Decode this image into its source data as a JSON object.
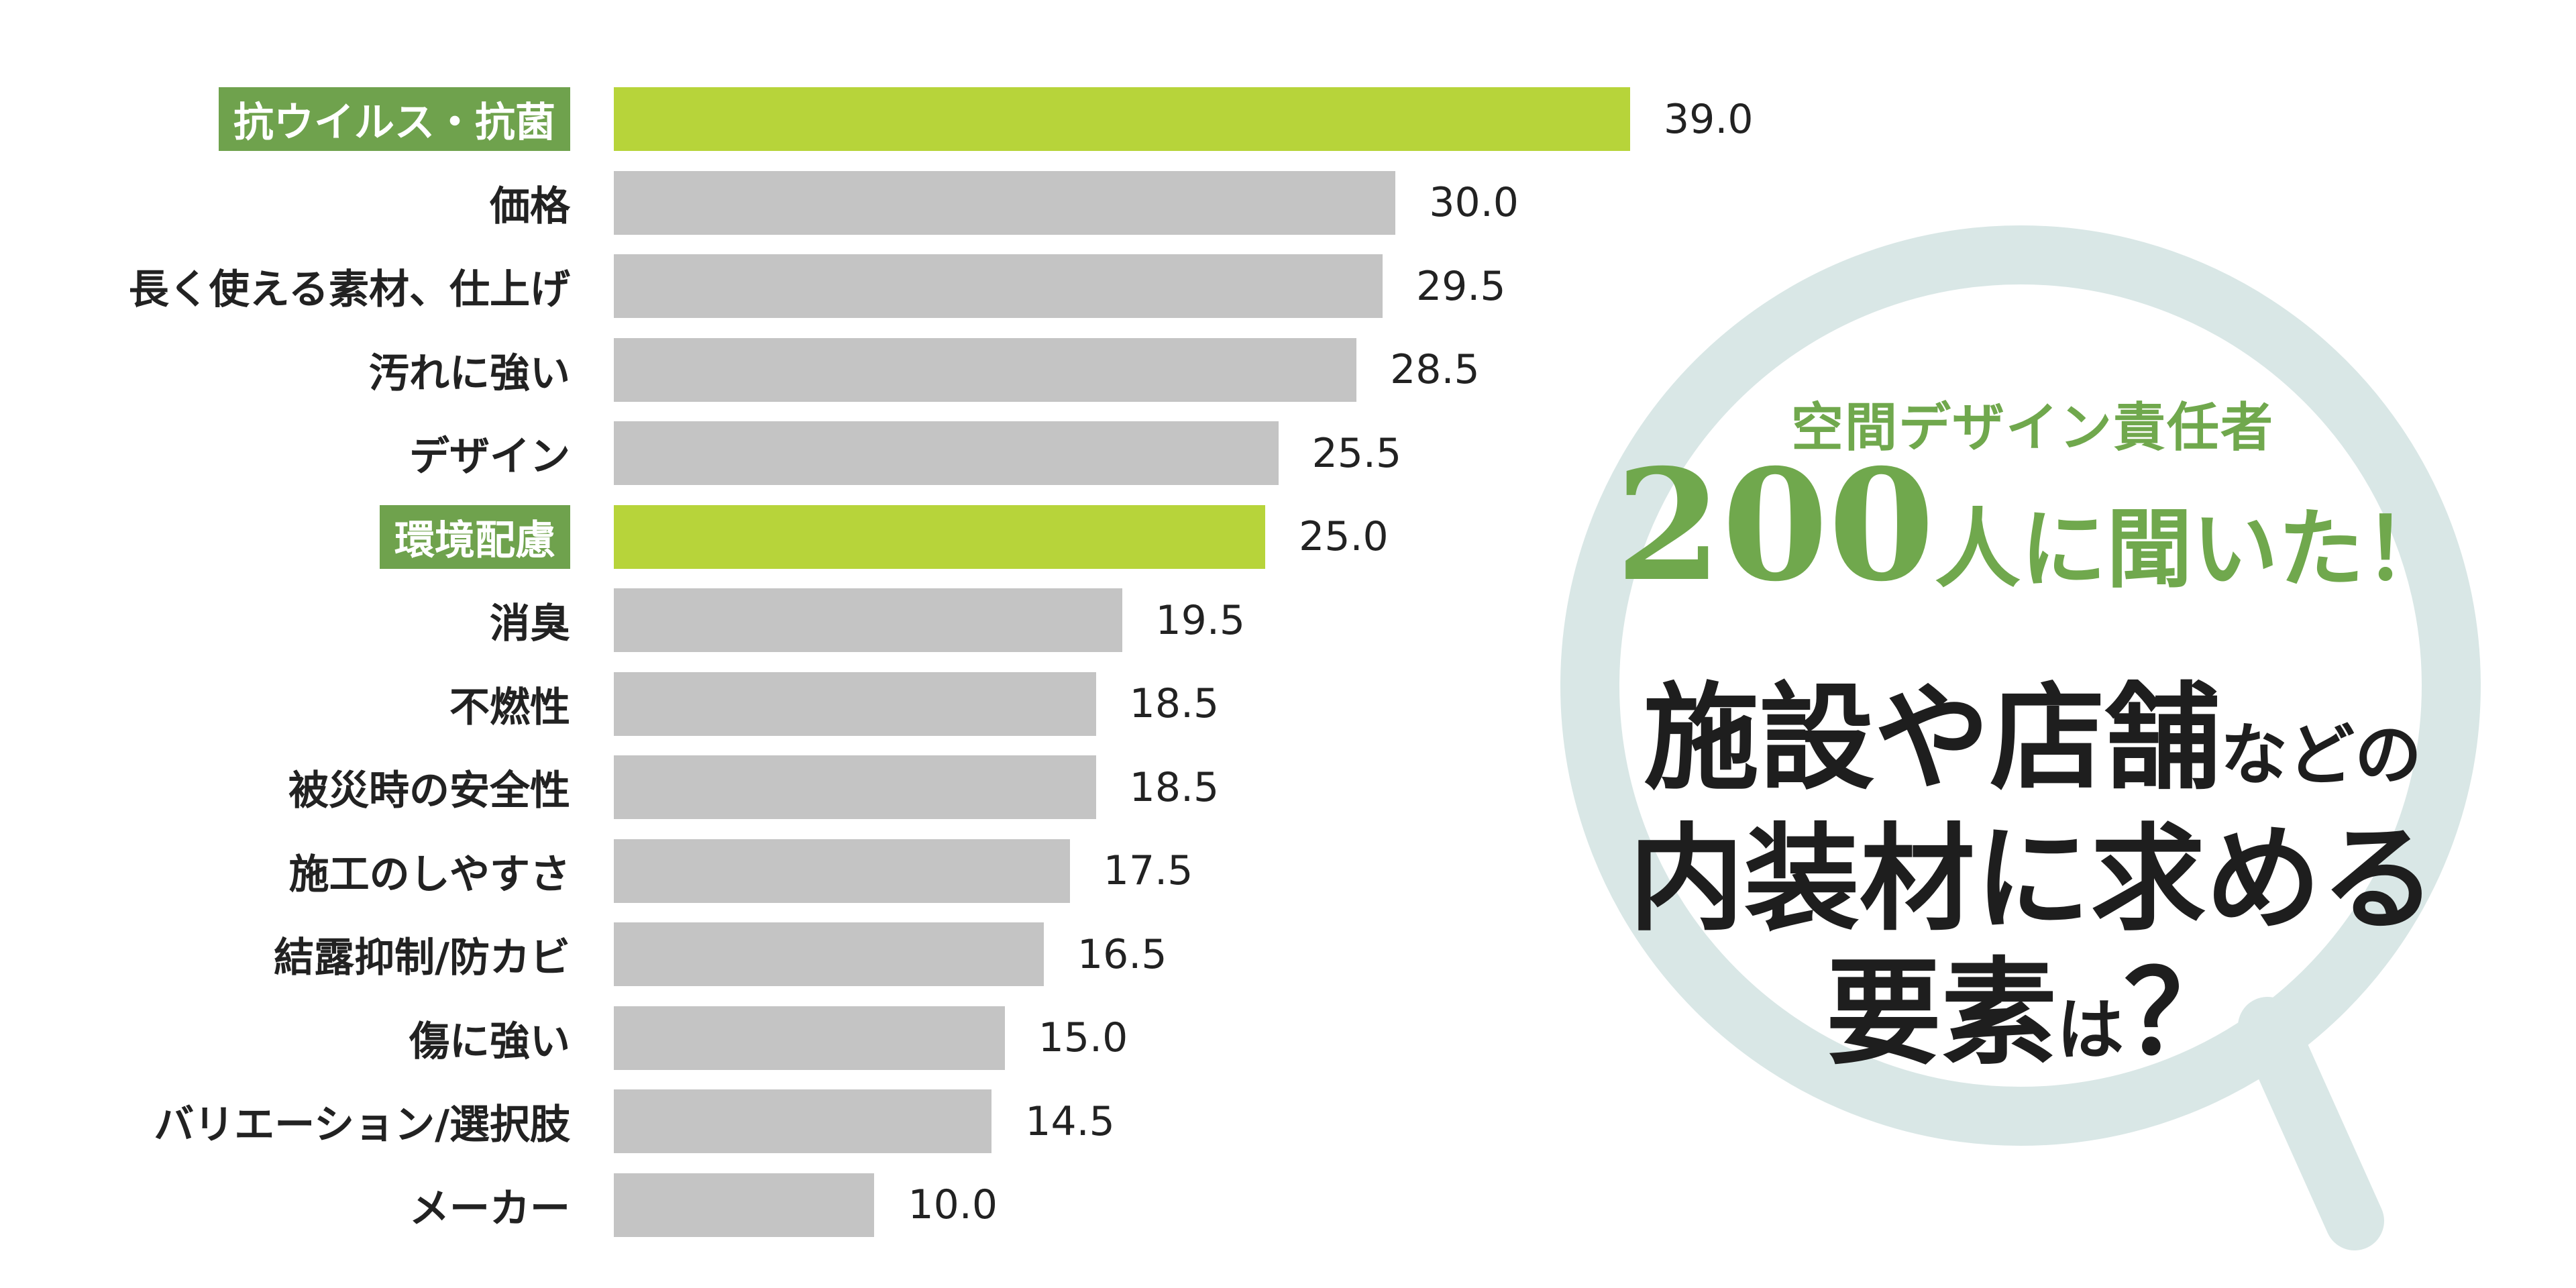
{
  "colors": {
    "highlight_bar": "#b7d43a",
    "bar": "#c4c4c4",
    "highlight_label_bg": "#6fa24d",
    "ring": "#d9e7e6",
    "accent_text": "#70a84d"
  },
  "chart_data": {
    "type": "bar",
    "orientation": "horizontal",
    "title": "",
    "xlabel": "",
    "ylabel": "",
    "xlim": [
      0,
      39.0
    ],
    "grid": false,
    "categories": [
      "抗ウイルス・抗菌",
      "価格",
      "長く使える素材、仕上げ",
      "汚れに強い",
      "デザイン",
      "環境配慮",
      "消臭",
      "不燃性",
      "被災時の安全性",
      "施工のしやすさ",
      "結露抑制/防カビ",
      "傷に強い",
      "バリエーション/選択肢",
      "メーカー"
    ],
    "values": [
      39.0,
      30.0,
      29.5,
      28.5,
      25.5,
      25.0,
      19.5,
      18.5,
      18.5,
      17.5,
      16.5,
      15.0,
      14.5,
      10.0
    ],
    "value_labels": [
      "39.0",
      "30.0",
      "29.5",
      "28.5",
      "25.5",
      "25.0",
      "19.5",
      "18.5",
      "18.5",
      "17.5",
      "16.5",
      "15.0",
      "14.5",
      "10.0"
    ],
    "highlighted": [
      "抗ウイルス・抗菌",
      "環境配慮"
    ]
  },
  "callout": {
    "subtitle": "空間デザイン責任者",
    "count_number": "200",
    "count_rest": "人に聞いた！",
    "line1_big": "施設や店舗",
    "line1_small": "などの",
    "line2": "内装材に求める",
    "line3_big": "要素",
    "line3_small": "は",
    "line3_mark": "？"
  },
  "icons": {
    "background": "magnifier-icon"
  }
}
